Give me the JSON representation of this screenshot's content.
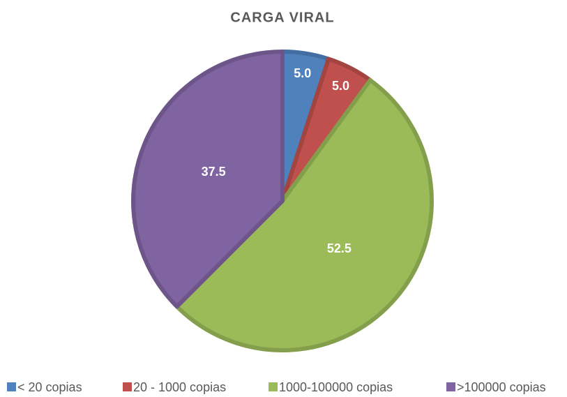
{
  "chart_data": {
    "type": "pie",
    "title": "CARGA VIRAL",
    "categories": [
      "< 20 copias",
      "20 - 1000 copias",
      "1000-100000 copias",
      ">100000 copias"
    ],
    "values": [
      5.0,
      5.0,
      52.5,
      37.5
    ],
    "value_labels": [
      "5.0",
      "5.0",
      "52.5",
      "37.5"
    ],
    "colors": [
      "#4f81bd",
      "#c0504d",
      "#9bbb59",
      "#8064a2"
    ],
    "legend": "bottom"
  }
}
